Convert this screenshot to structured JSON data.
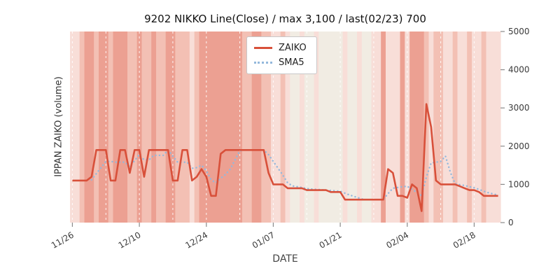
{
  "chart_data": {
    "type": "line",
    "title": "9202 NIKKO Line(Close) / max 3,100 / last(02/23) 700",
    "xlabel": "DATE",
    "ylabel": "IPPAN ZAIKO (volume)",
    "ylim": [
      0,
      5000
    ],
    "yticks": [
      0,
      1000,
      2000,
      3000,
      4000,
      5000
    ],
    "grid_on": true,
    "legend_position": "upper center",
    "x": [
      "11/26",
      "11/27",
      "11/28",
      "11/29",
      "11/30",
      "12/01",
      "12/02",
      "12/03",
      "12/04",
      "12/05",
      "12/06",
      "12/07",
      "12/08",
      "12/09",
      "12/10",
      "12/11",
      "12/12",
      "12/13",
      "12/14",
      "12/15",
      "12/16",
      "12/17",
      "12/18",
      "12/19",
      "12/20",
      "12/21",
      "12/22",
      "12/23",
      "12/24",
      "12/25",
      "12/26",
      "12/27",
      "12/28",
      "12/29",
      "12/30",
      "12/31",
      "01/01",
      "01/02",
      "01/03",
      "01/04",
      "01/05",
      "01/06",
      "01/07",
      "01/08",
      "01/09",
      "01/10",
      "01/11",
      "01/12",
      "01/13",
      "01/14",
      "01/15",
      "01/16",
      "01/17",
      "01/18",
      "01/19",
      "01/20",
      "01/21",
      "01/22",
      "01/23",
      "01/24",
      "01/25",
      "01/26",
      "01/27",
      "01/28",
      "01/29",
      "01/30",
      "01/31",
      "02/01",
      "02/02",
      "02/03",
      "02/04",
      "02/05",
      "02/06",
      "02/07",
      "02/08",
      "02/09",
      "02/10",
      "02/11",
      "02/12",
      "02/13",
      "02/14",
      "02/15",
      "02/16",
      "02/17",
      "02/18",
      "02/19",
      "02/20",
      "02/21",
      "02/22",
      "02/23"
    ],
    "x_ticks": [
      {
        "index": 0,
        "label": "11/26"
      },
      {
        "index": 14,
        "label": "12/10"
      },
      {
        "index": 28,
        "label": "12/24"
      },
      {
        "index": 42,
        "label": "01/07"
      },
      {
        "index": 56,
        "label": "01/21"
      },
      {
        "index": 70,
        "label": "02/04"
      },
      {
        "index": 84,
        "label": "02/18"
      }
    ],
    "grid_indices": [
      0,
      7,
      14,
      21,
      28,
      35,
      42,
      49,
      56,
      63,
      70,
      77,
      84
    ],
    "series": [
      {
        "name": "ZAIKO",
        "color": "#d8503a",
        "style": "solid",
        "max": 3100,
        "last": 700,
        "values": [
          1100,
          1100,
          1100,
          1100,
          1200,
          1900,
          1900,
          1900,
          1100,
          1100,
          1900,
          1900,
          1300,
          1900,
          1900,
          1200,
          1900,
          1900,
          1900,
          1900,
          1900,
          1100,
          1100,
          1900,
          1900,
          1100,
          1200,
          1400,
          1200,
          700,
          700,
          1800,
          1900,
          1900,
          1900,
          1900,
          1900,
          1900,
          1900,
          1900,
          1900,
          1300,
          1000,
          1000,
          1000,
          900,
          900,
          900,
          900,
          850,
          850,
          850,
          850,
          850,
          800,
          800,
          800,
          600,
          600,
          600,
          600,
          600,
          600,
          600,
          600,
          600,
          1400,
          1300,
          700,
          700,
          650,
          1000,
          900,
          300,
          3100,
          2500,
          1100,
          1000,
          1000,
          1000,
          1000,
          950,
          900,
          850,
          850,
          800,
          700,
          700,
          700,
          700
        ]
      },
      {
        "name": "SMA5",
        "color": "#94b8dc",
        "style": "dotted",
        "window": 5,
        "derived": "5-day moving average of ZAIKO"
      }
    ],
    "background_bands": {
      "palette": [
        "#f1ece3",
        "#f8ded8",
        "#f3c0b4",
        "#eca092"
      ],
      "intensity": [
        1,
        1,
        2,
        3,
        3,
        2,
        3,
        3,
        2,
        3,
        3,
        3,
        2,
        2,
        3,
        2,
        2,
        3,
        2,
        2,
        3,
        3,
        2,
        2,
        2,
        1,
        2,
        3,
        3,
        3,
        3,
        3,
        3,
        3,
        3,
        3,
        2,
        2,
        3,
        3,
        2,
        2,
        1,
        1,
        2,
        1,
        0,
        0,
        1,
        0,
        0,
        1,
        0,
        0,
        0,
        0,
        0,
        1,
        0,
        0,
        1,
        0,
        0,
        1,
        1,
        3,
        1,
        1,
        1,
        3,
        1,
        3,
        3,
        3,
        2,
        1,
        2,
        2,
        1,
        1,
        2,
        1,
        1,
        2,
        1,
        1,
        2,
        1,
        1,
        1
      ]
    }
  }
}
